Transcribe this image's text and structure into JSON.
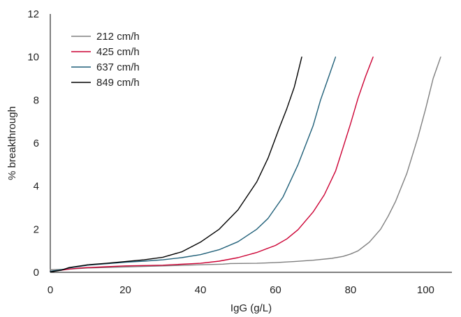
{
  "chart_data": {
    "type": "line",
    "title": "",
    "xlabel": "IgG (g/L)",
    "ylabel": "% breakthrough",
    "xlim": [
      0,
      107
    ],
    "ylim": [
      0,
      12
    ],
    "xticks": [
      0,
      20,
      40,
      60,
      80,
      100
    ],
    "yticks": [
      0,
      2,
      4,
      6,
      8,
      10,
      12
    ],
    "grid": false,
    "legend_position": "top-left",
    "series": [
      {
        "name": "212 cm/h",
        "color": "#7f7f7f",
        "x": [
          0,
          5,
          10,
          20,
          30,
          40,
          46,
          48,
          55,
          60,
          65,
          70,
          75,
          78,
          80,
          82,
          85,
          88,
          90,
          92,
          95,
          98,
          100,
          102,
          103,
          104
        ],
        "y": [
          0.12,
          0.15,
          0.2,
          0.25,
          0.3,
          0.35,
          0.38,
          0.41,
          0.42,
          0.45,
          0.5,
          0.56,
          0.65,
          0.74,
          0.85,
          1.0,
          1.4,
          2.0,
          2.6,
          3.3,
          4.6,
          6.3,
          7.6,
          9.0,
          9.5,
          10.0
        ]
      },
      {
        "name": "425 cm/h",
        "color": "#cc0033",
        "x": [
          0,
          3,
          5,
          8,
          10,
          15,
          20,
          30,
          40,
          45,
          50,
          55,
          60,
          63,
          66,
          70,
          73,
          76,
          78,
          80,
          82,
          84,
          86
        ],
        "y": [
          0.05,
          0.1,
          0.15,
          0.2,
          0.22,
          0.26,
          0.3,
          0.33,
          0.42,
          0.52,
          0.68,
          0.92,
          1.25,
          1.55,
          1.98,
          2.8,
          3.6,
          4.7,
          5.8,
          6.9,
          8.1,
          9.1,
          10.0
        ]
      },
      {
        "name": "637 cm/h",
        "color": "#1f5f78",
        "x": [
          0,
          3,
          5,
          8,
          10,
          15,
          20,
          25,
          30,
          35,
          40,
          45,
          50,
          55,
          58,
          62,
          66,
          70,
          72,
          74,
          76
        ],
        "y": [
          0.05,
          0.12,
          0.2,
          0.28,
          0.33,
          0.4,
          0.47,
          0.52,
          0.58,
          0.68,
          0.82,
          1.05,
          1.42,
          2.0,
          2.5,
          3.5,
          5.0,
          6.8,
          8.0,
          9.0,
          10.0
        ]
      },
      {
        "name": "849 cm/h",
        "color": "#000000",
        "x": [
          0,
          3,
          5,
          8,
          10,
          15,
          20,
          25,
          30,
          35,
          40,
          45,
          50,
          55,
          58,
          61,
          63,
          65,
          66,
          67
        ],
        "y": [
          0.02,
          0.1,
          0.22,
          0.3,
          0.35,
          0.42,
          0.5,
          0.58,
          0.7,
          0.95,
          1.4,
          2.0,
          2.9,
          4.2,
          5.3,
          6.7,
          7.6,
          8.6,
          9.3,
          10.0
        ]
      }
    ]
  }
}
